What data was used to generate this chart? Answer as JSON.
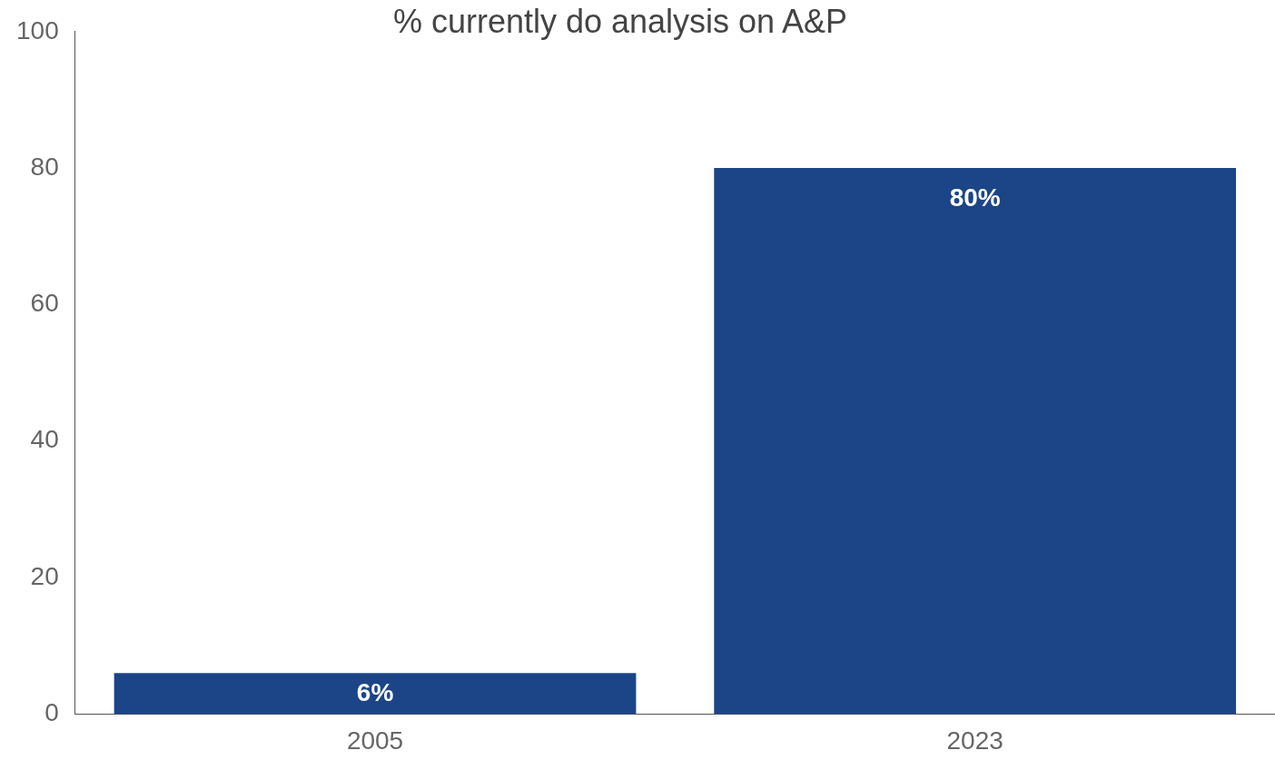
{
  "chart_data": {
    "type": "bar",
    "title": "% currently do analysis on A&P",
    "categories": [
      "2005",
      "2023"
    ],
    "values": [
      6,
      80
    ],
    "value_labels": [
      "6%",
      "80%"
    ],
    "color": "#1c4587",
    "ylim": [
      0,
      100
    ],
    "yticks": [
      0,
      20,
      40,
      60,
      80,
      100
    ],
    "grid": false,
    "legend": false
  }
}
